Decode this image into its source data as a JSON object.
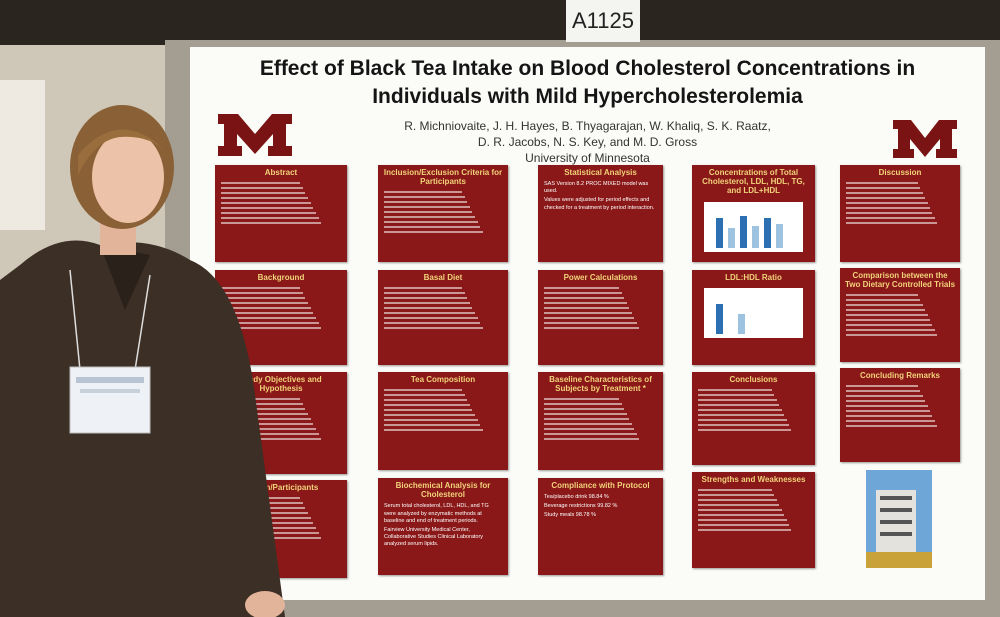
{
  "sign": "A1125",
  "poster": {
    "title": [
      "Effect of Black Tea Intake on Blood Cholesterol Concentrations in",
      "Individuals with Mild Hypercholesterolemia"
    ],
    "authors": [
      "R. Michniovaite, J. H. Hayes, B. Thyagarajan, W. Khaliq, S. K. Raatz,",
      "D. R. Jacobs, N. S. Key, and M. D. Gross"
    ],
    "affiliation": "University of Minnesota",
    "panels": [
      {
        "title": "Abstract"
      },
      {
        "title": "Background"
      },
      {
        "title": "Study Objectives and Hypothesis"
      },
      {
        "title": "Design/Participants"
      },
      {
        "title": "Inclusion/Exclusion Criteria for Participants"
      },
      {
        "title": "Basal Diet"
      },
      {
        "title": "Tea Composition"
      },
      {
        "title": "Biochemical Analysis for Cholesterol",
        "body": [
          "Serum total cholesterol, LDL, HDL, and TG were analyzed by enzymatic methods at baseline and end of treatment periods.",
          "Fairview University Medical Center, Collaborative Studies Clinical Laboratory analyzed serum lipids."
        ]
      },
      {
        "title": "Statistical Analysis",
        "body": [
          "SAS Version 8.2 PROC MIXED model was used.",
          "Values were adjusted for period effects and checked for a treatment by period interaction."
        ]
      },
      {
        "title": "Power Calculations"
      },
      {
        "title": "Baseline Characteristics of Subjects by Treatment *"
      },
      {
        "title": "Compliance with Protocol",
        "body": [
          "Tea/placebo drink 98.84 %",
          "Beverage restrictions 99.82 %",
          "Study meals 98.78 %"
        ]
      },
      {
        "title": "Concentrations of Total Cholesterol, LDL, HDL, TG, and LDL+HDL"
      },
      {
        "title": "LDL:HDL Ratio"
      },
      {
        "title": "Conclusions"
      },
      {
        "title": "Strengths and Weaknesses"
      },
      {
        "title": "Discussion"
      },
      {
        "title": "Comparison between the Two Dietary Controlled Trials"
      },
      {
        "title": "Concluding Remarks"
      }
    ]
  }
}
